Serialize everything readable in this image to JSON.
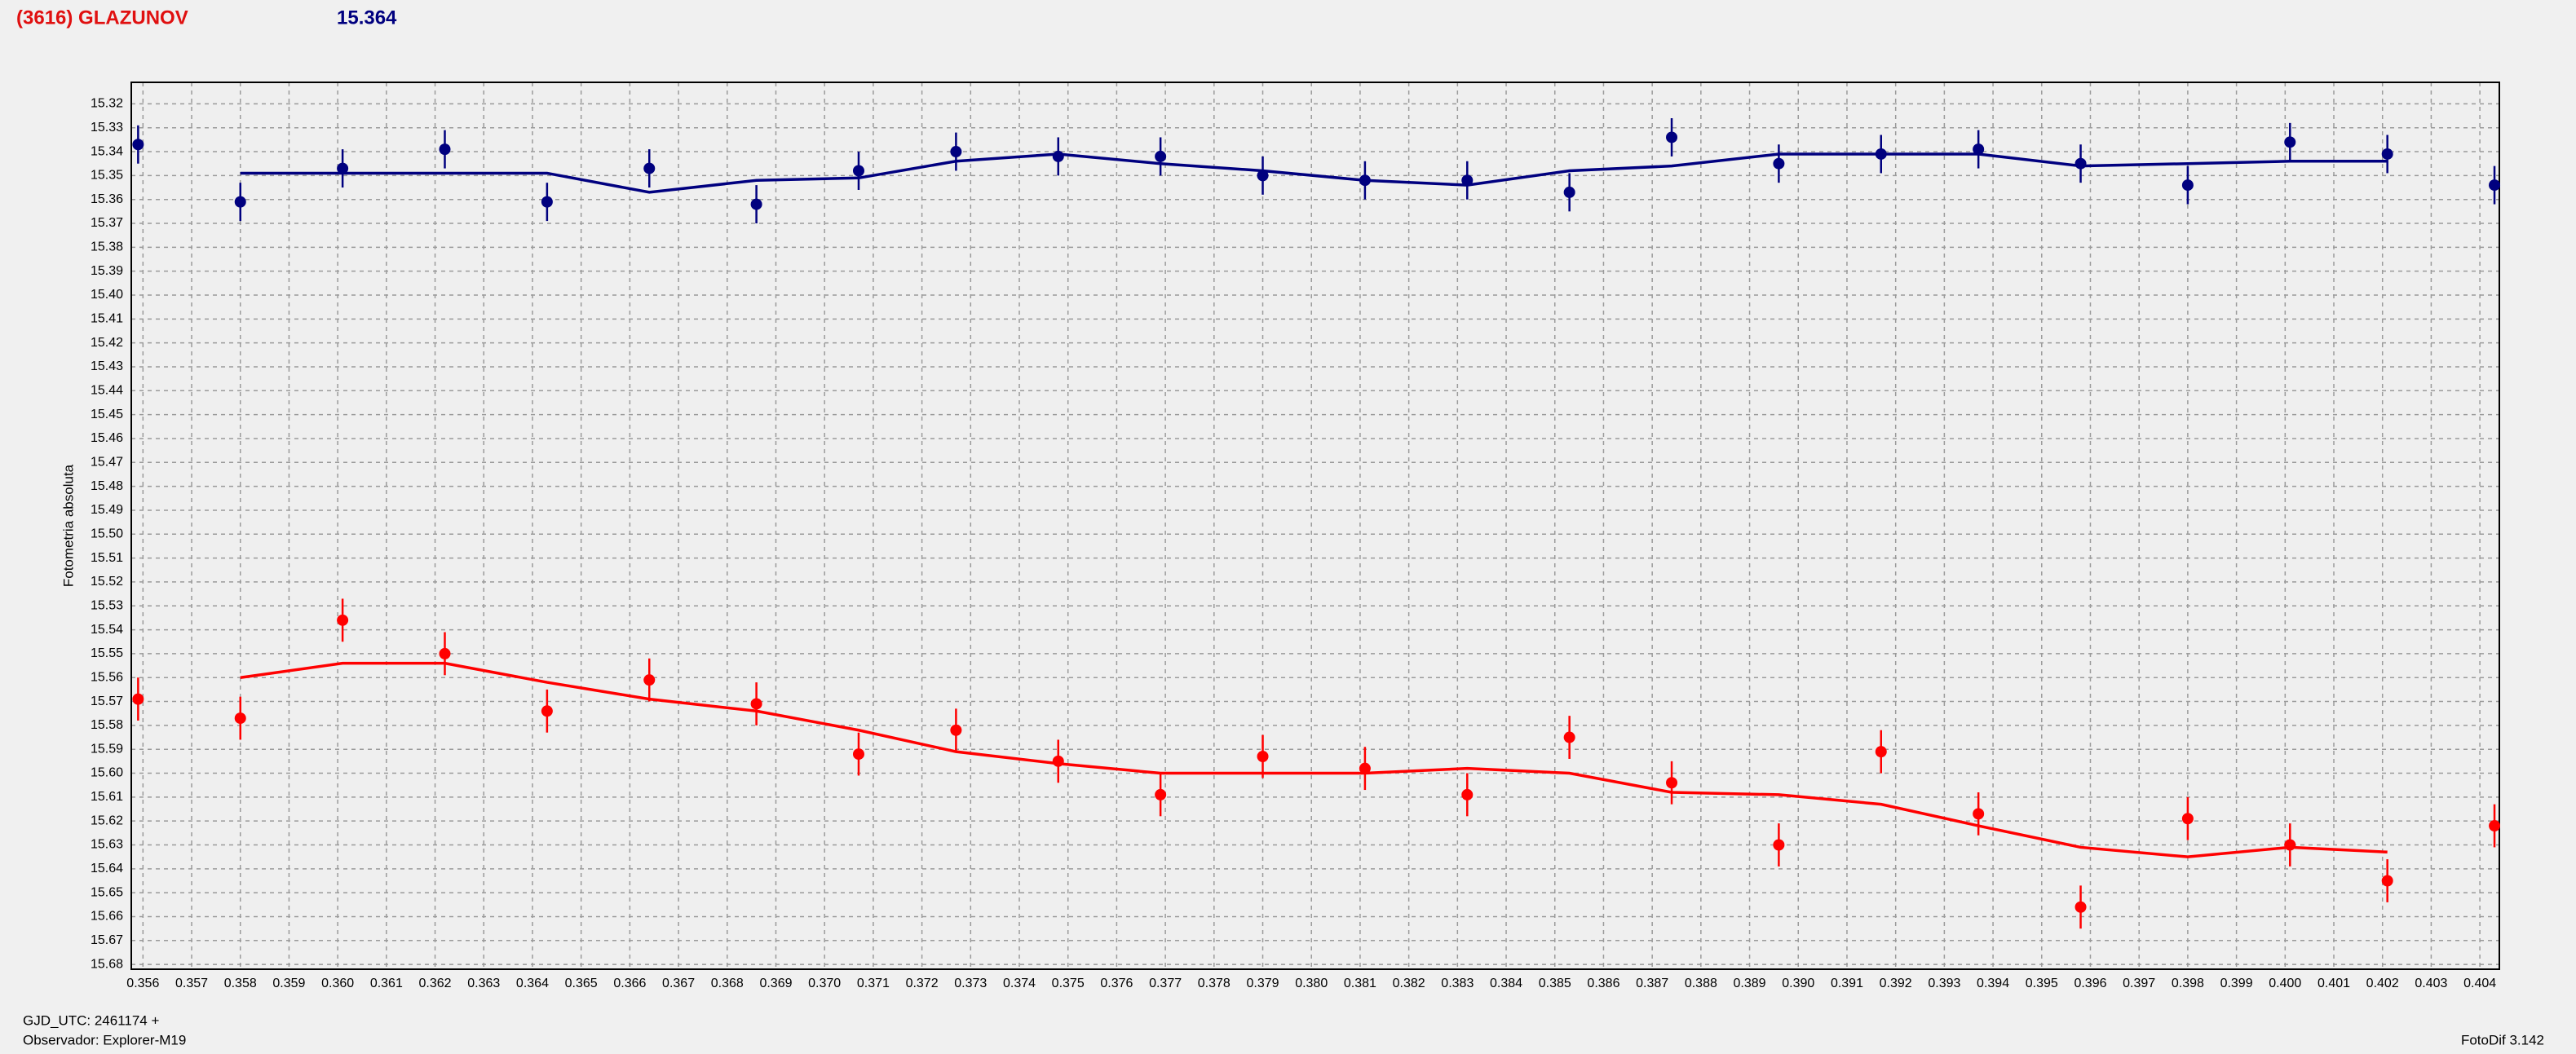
{
  "header": {
    "object": "(3616) GLAZUNOV",
    "magnitude": "15.364"
  },
  "chart_data": {
    "type": "scatter",
    "y_label": "Fotometria absoluta",
    "grid": true,
    "xlim": [
      0.35576,
      0.4044
    ],
    "ylim": [
      15.682,
      15.311
    ],
    "xticks": [
      0.356,
      0.357,
      0.358,
      0.359,
      {
        "value": 0.36,
        "label": "0.360"
      },
      0.361,
      0.362,
      0.363,
      0.364,
      0.365,
      0.366,
      0.367,
      0.368,
      0.369,
      {
        "value": 0.37,
        "label": "0.370"
      },
      0.371,
      0.372,
      0.373,
      0.374,
      0.375,
      0.376,
      0.377,
      0.378,
      0.379,
      {
        "value": 0.38,
        "label": "0.380"
      },
      0.381,
      0.382,
      0.383,
      0.384,
      0.385,
      0.386,
      0.387,
      0.388,
      0.389,
      {
        "value": 0.39,
        "label": "0.390"
      },
      0.391,
      0.392,
      0.393,
      0.394,
      0.395,
      0.396,
      0.397,
      0.398,
      0.399,
      {
        "value": 0.4,
        "label": "0.400"
      },
      0.401,
      0.402,
      0.403,
      0.404
    ],
    "yticks": [
      15.32,
      15.33,
      15.34,
      15.35,
      15.36,
      15.37,
      15.38,
      15.39,
      {
        "value": 15.4,
        "label": "15.40"
      },
      15.41,
      15.42,
      15.43,
      15.44,
      15.45,
      15.46,
      15.47,
      15.48,
      15.49,
      {
        "value": 15.5,
        "label": "15.50"
      },
      15.51,
      15.52,
      15.53,
      15.54,
      15.55,
      15.56,
      15.57,
      15.58,
      15.59,
      {
        "value": 15.6,
        "label": "15.60"
      },
      15.61,
      15.62,
      15.63,
      15.64,
      15.65,
      15.66,
      15.67,
      15.68
    ],
    "x": [
      0.3559,
      0.358,
      0.3601,
      0.3622,
      0.3643,
      0.3664,
      0.3686,
      0.3707,
      0.3727,
      0.3748,
      0.3769,
      0.379,
      0.3811,
      0.3832,
      0.3853,
      0.3874,
      0.3896,
      0.3917,
      0.3937,
      0.3958,
      0.398,
      0.4001,
      0.4021,
      0.4043
    ],
    "series": [
      {
        "color": "#00007f",
        "values": [
          15.337,
          15.361,
          15.347,
          15.339,
          15.361,
          15.347,
          15.362,
          15.348,
          15.34,
          15.342,
          15.342,
          15.35,
          15.352,
          15.352,
          15.357,
          15.334,
          15.345,
          15.341,
          15.339,
          15.345,
          15.354,
          15.336,
          15.341,
          15.354
        ],
        "errors": [
          0.008,
          0.008,
          0.008,
          0.008,
          0.008,
          0.008,
          0.008,
          0.008,
          0.008,
          0.008,
          0.008,
          0.008,
          0.008,
          0.008,
          0.008,
          0.008,
          0.008,
          0.008,
          0.008,
          0.008,
          0.008,
          0.008,
          0.008,
          0.008
        ],
        "fit": [
          null,
          15.349,
          15.349,
          15.349,
          15.349,
          15.357,
          15.352,
          15.351,
          15.344,
          15.341,
          15.345,
          15.348,
          15.352,
          15.354,
          15.348,
          15.346,
          15.341,
          15.341,
          15.341,
          15.346,
          15.345,
          15.344,
          15.344,
          null
        ]
      },
      {
        "color": "#ff0000",
        "values": [
          15.569,
          15.577,
          15.536,
          15.55,
          15.574,
          15.561,
          15.571,
          15.592,
          15.582,
          15.595,
          15.609,
          15.593,
          15.598,
          15.609,
          15.585,
          15.604,
          15.63,
          15.591,
          15.617,
          15.656,
          15.619,
          15.63,
          15.645,
          15.622
        ],
        "errors": [
          0.009,
          0.009,
          0.009,
          0.009,
          0.009,
          0.009,
          0.009,
          0.009,
          0.009,
          0.009,
          0.009,
          0.009,
          0.009,
          0.009,
          0.009,
          0.009,
          0.009,
          0.009,
          0.009,
          0.009,
          0.009,
          0.009,
          0.009,
          0.009
        ],
        "fit": [
          null,
          15.56,
          15.554,
          15.554,
          15.562,
          15.569,
          15.574,
          15.582,
          15.591,
          15.596,
          15.6,
          15.6,
          15.6,
          15.598,
          15.6,
          15.608,
          15.609,
          15.613,
          15.622,
          15.631,
          15.635,
          15.631,
          15.633,
          null
        ]
      }
    ]
  },
  "footer": {
    "time_base": "GJD_UTC: 2461174 +",
    "observer": "Observador: Explorer-M19",
    "software": "FotoDif 3.142"
  }
}
